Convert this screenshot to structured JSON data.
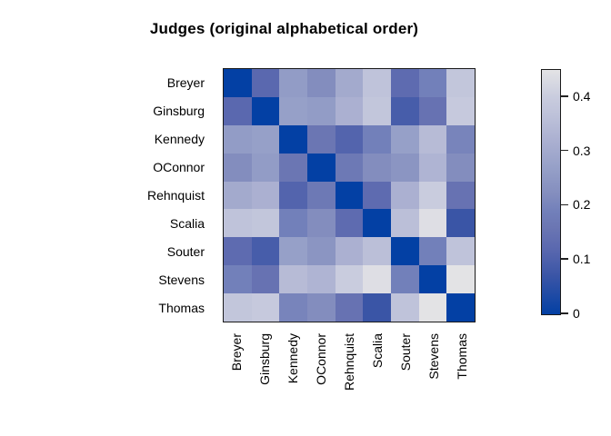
{
  "chart_data": {
    "type": "heatmap",
    "title": "Judges (original alphabetical order)",
    "row_labels": [
      "Breyer",
      "Ginsburg",
      "Kennedy",
      "OConnor",
      "Rehnquist",
      "Scalia",
      "Souter",
      "Stevens",
      "Thomas"
    ],
    "col_labels": [
      "Breyer",
      "Ginsburg",
      "Kennedy",
      "OConnor",
      "Rehnquist",
      "Scalia",
      "Souter",
      "Stevens",
      "Thomas"
    ],
    "matrix": [
      [
        0.0,
        0.12,
        0.26,
        0.22,
        0.3,
        0.37,
        0.13,
        0.19,
        0.38
      ],
      [
        0.12,
        0.0,
        0.27,
        0.26,
        0.32,
        0.38,
        0.09,
        0.15,
        0.39
      ],
      [
        0.26,
        0.27,
        0.0,
        0.16,
        0.11,
        0.19,
        0.27,
        0.35,
        0.2
      ],
      [
        0.22,
        0.26,
        0.16,
        0.0,
        0.17,
        0.22,
        0.24,
        0.33,
        0.22
      ],
      [
        0.3,
        0.32,
        0.11,
        0.17,
        0.0,
        0.13,
        0.32,
        0.4,
        0.15
      ],
      [
        0.37,
        0.38,
        0.19,
        0.22,
        0.13,
        0.0,
        0.36,
        0.44,
        0.07
      ],
      [
        0.13,
        0.09,
        0.27,
        0.24,
        0.32,
        0.36,
        0.0,
        0.19,
        0.37
      ],
      [
        0.19,
        0.15,
        0.35,
        0.33,
        0.4,
        0.44,
        0.19,
        0.0,
        0.45
      ],
      [
        0.38,
        0.39,
        0.2,
        0.22,
        0.15,
        0.07,
        0.37,
        0.45,
        0.0
      ]
    ],
    "value_range": [
      0,
      0.45
    ],
    "legend": {
      "position": "right",
      "ticks": [
        0,
        0.1,
        0.2,
        0.3,
        0.4
      ],
      "tick_labels": [
        "0",
        "0.1",
        "0.2",
        "0.3",
        "0.4"
      ]
    },
    "palette": {
      "low": "#0340a4",
      "high": "#e3e3e5",
      "stops": [
        {
          "t": 0.0,
          "color": "#0340a4"
        },
        {
          "t": 0.156,
          "color": "#3a55a6"
        },
        {
          "t": 0.267,
          "color": "#5a68af"
        },
        {
          "t": 0.356,
          "color": "#6b76b3"
        },
        {
          "t": 0.422,
          "color": "#7280ba"
        },
        {
          "t": 0.489,
          "color": "#838dbe"
        },
        {
          "t": 0.6,
          "color": "#96a0c8"
        },
        {
          "t": 0.711,
          "color": "#abb0d1"
        },
        {
          "t": 0.822,
          "color": "#bfc3da"
        },
        {
          "t": 0.889,
          "color": "#c9ccde"
        },
        {
          "t": 1.0,
          "color": "#e3e3e5"
        }
      ]
    },
    "grid_lines": false
  }
}
